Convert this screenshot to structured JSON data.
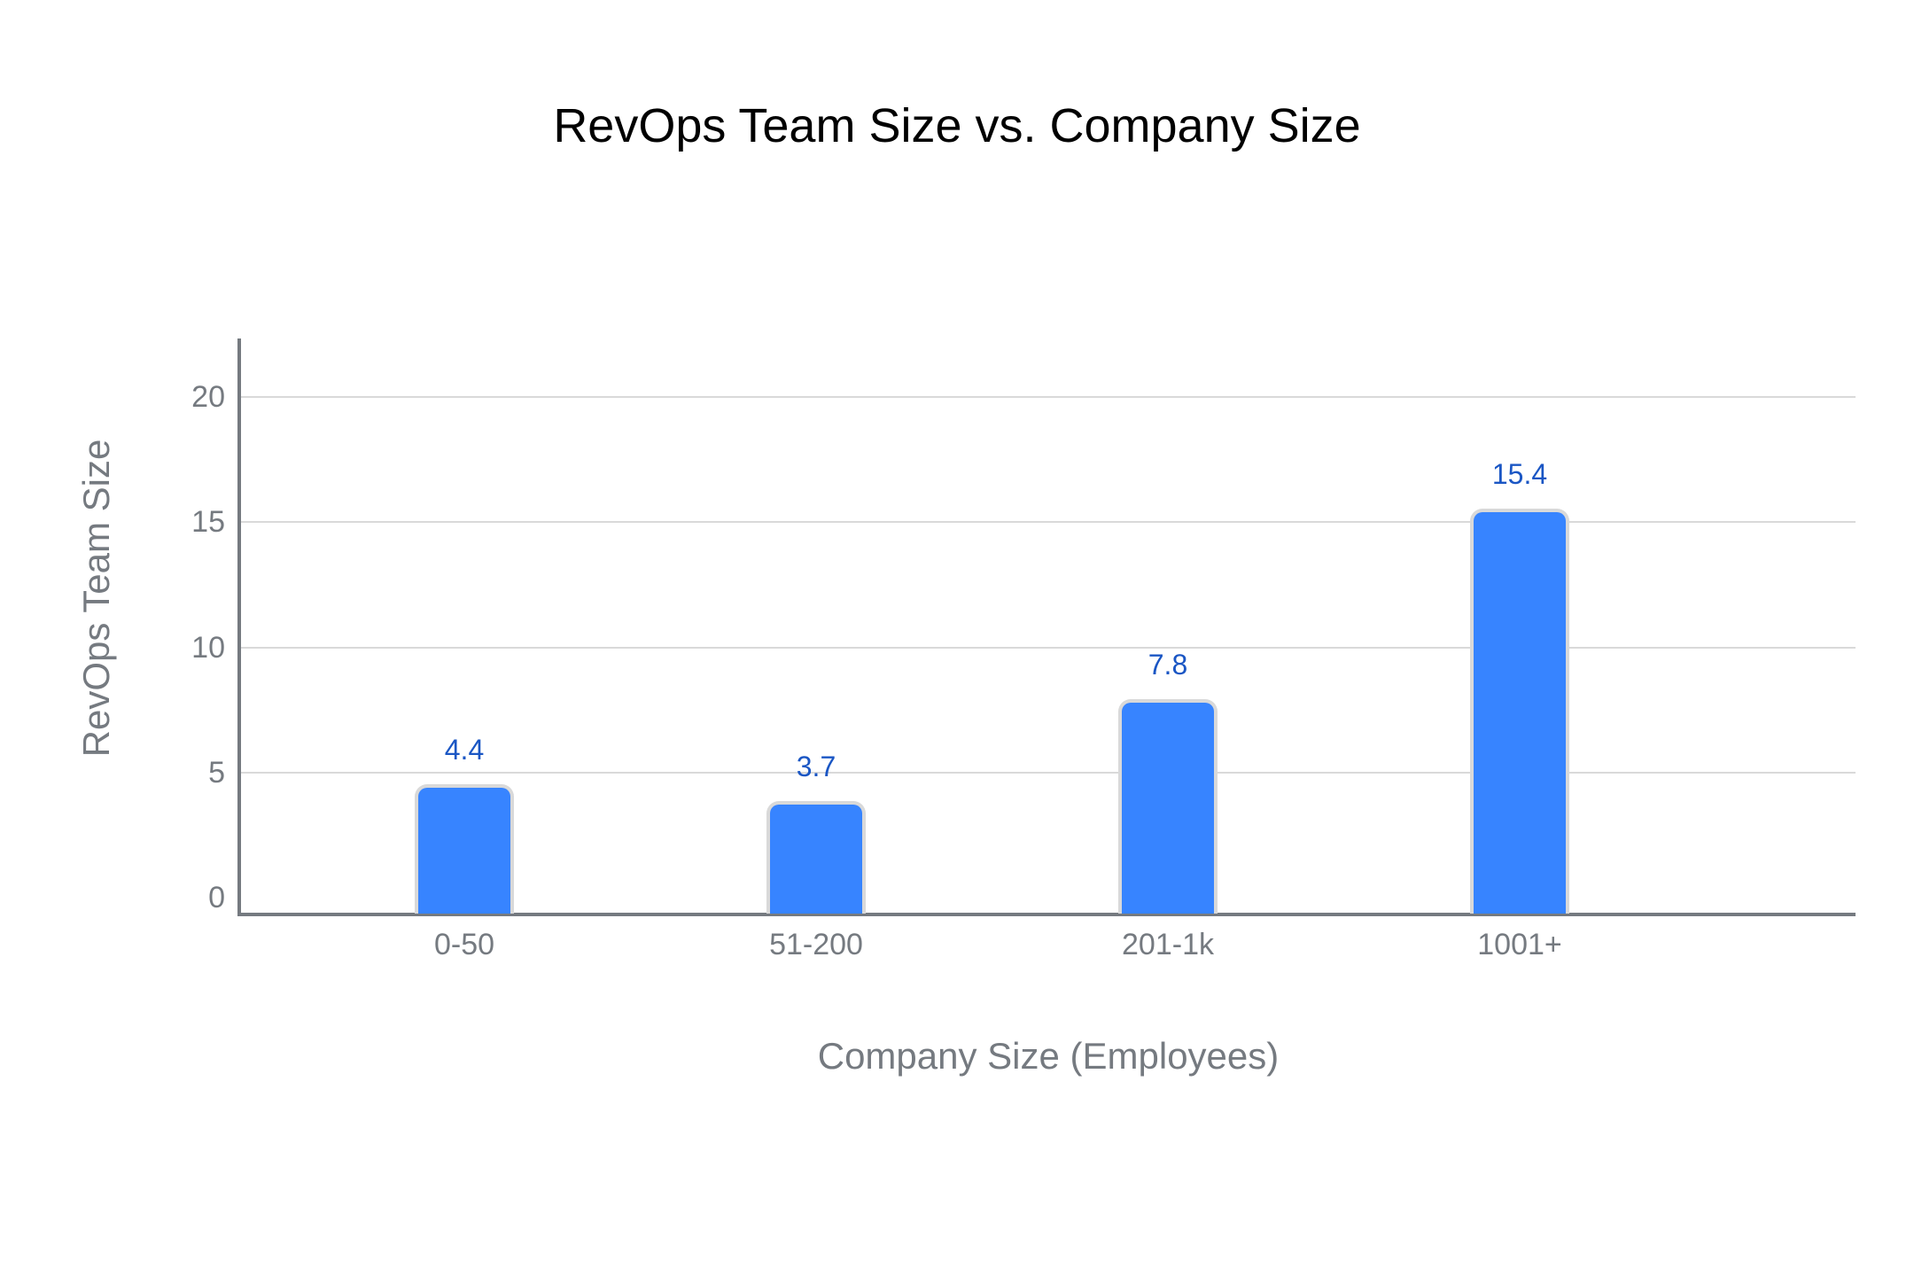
{
  "chart_data": {
    "type": "bar",
    "title": "RevOps Team Size vs. Company Size",
    "xlabel": "Company Size (Employees)",
    "ylabel": "RevOps Team Size",
    "categories": [
      "0-50",
      "51-200",
      "201-1k",
      "1001+"
    ],
    "values": [
      4.4,
      3.7,
      7.8,
      15.4
    ],
    "data_labels": [
      "4.4",
      "3.7",
      "7.8",
      "15.4"
    ],
    "yticks": [
      0,
      5,
      10,
      15,
      20
    ],
    "ylim": [
      0,
      22
    ],
    "grid": true,
    "legend": "none",
    "colors": {
      "bar": "#3784ff",
      "bar_border": "#d9d9d9",
      "data_label": "#1a56c4",
      "axis": "#757a80",
      "gridline": "#d9d9d9",
      "title": "#000000"
    }
  }
}
